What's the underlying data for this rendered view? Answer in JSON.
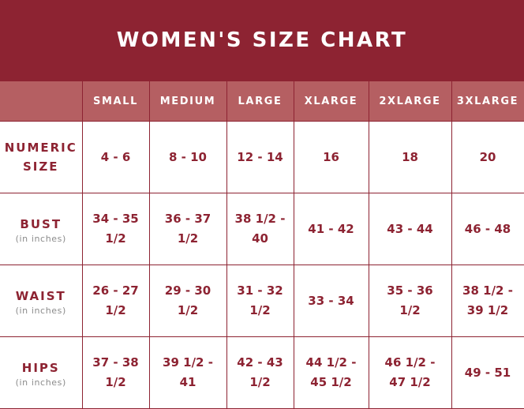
{
  "title": "WOMEN'S SIZE CHART",
  "columns": [
    "SMALL",
    "MEDIUM",
    "LARGE",
    "XLARGE",
    "2XLARGE",
    "3XLARGE"
  ],
  "rows": [
    {
      "label": "NUMERIC SIZE",
      "sub": "",
      "cells": [
        "4 - 6",
        "8 - 10",
        "12 - 14",
        "16",
        "18",
        "20"
      ]
    },
    {
      "label": "BUST",
      "sub": "(in inches)",
      "cells": [
        "34 - 35 1/2",
        "36 - 37 1/2",
        "38 1/2 - 40",
        "41 - 42",
        "43 - 44",
        "46 - 48"
      ]
    },
    {
      "label": "WAIST",
      "sub": "(in inches)",
      "cells": [
        "26 - 27 1/2",
        "29 - 30 1/2",
        "31 - 32 1/2",
        "33 - 34",
        "35 - 36 1/2",
        "38 1/2 - 39 1/2"
      ]
    },
    {
      "label": "HIPS",
      "sub": "(in inches)",
      "cells": [
        "37 - 38 1/2",
        "39 1/2 - 41",
        "42 - 43 1/2",
        "44 1/2 - 45 1/2",
        "46 1/2 - 47 1/2",
        "49 - 51"
      ]
    }
  ]
}
